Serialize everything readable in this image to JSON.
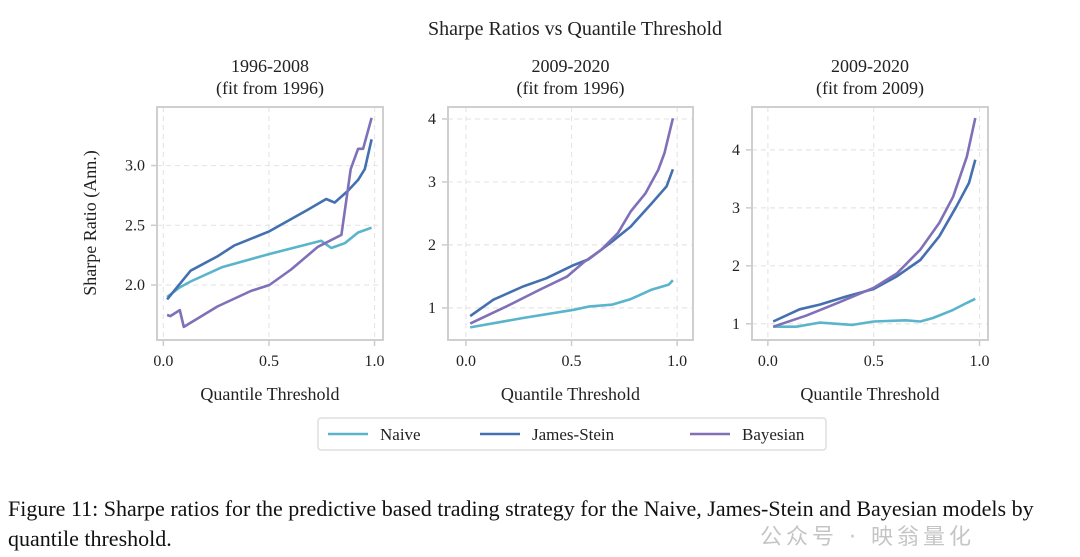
{
  "chart_data": {
    "type": "line",
    "title": "Sharpe Ratios vs Quantile Threshold",
    "ylabel": "Sharpe Ratio (Ann.)",
    "colors": {
      "Naive": "#5ab4cc",
      "James-Stein": "#4470b0",
      "Bayesian": "#8070b8"
    },
    "legend": {
      "placement": "bottom-center",
      "entries": [
        "Naive",
        "James-Stein",
        "Bayesian"
      ]
    },
    "grid": true,
    "panels": [
      {
        "title": [
          "1996-2008",
          "(fit from 1996)"
        ],
        "xlabel": "Quantile Threshold",
        "xlim": [
          -0.03,
          1.04
        ],
        "ylim": [
          1.54,
          3.49
        ],
        "xticks": [
          0.0,
          0.5,
          1.0
        ],
        "xtick_labels": [
          "0.0",
          "0.5",
          "1.0"
        ],
        "yticks": [
          2.0,
          2.5,
          3.0
        ],
        "ytick_labels": [
          "2.0",
          "2.5",
          "3.0"
        ],
        "series": [
          {
            "name": "Naive",
            "x": [
              0.018,
              0.078,
              0.129,
              0.279,
              0.502,
              0.748,
              0.771,
              0.795,
              0.859,
              0.922,
              0.986
            ],
            "y": [
              1.9,
              1.98,
              2.03,
              2.15,
              2.26,
              2.37,
              2.34,
              2.31,
              2.35,
              2.44,
              2.48
            ]
          },
          {
            "name": "James-Stein",
            "x": [
              0.018,
              0.129,
              0.256,
              0.335,
              0.502,
              0.684,
              0.771,
              0.811,
              0.875,
              0.922,
              0.954,
              0.986
            ],
            "y": [
              1.88,
              2.12,
              2.24,
              2.33,
              2.45,
              2.63,
              2.72,
              2.69,
              2.79,
              2.88,
              2.97,
              3.22
            ]
          },
          {
            "name": "Bayesian",
            "x": [
              0.018,
              0.033,
              0.078,
              0.097,
              0.256,
              0.414,
              0.502,
              0.605,
              0.732,
              0.843,
              0.887,
              0.922,
              0.946,
              0.986
            ],
            "y": [
              1.75,
              1.74,
              1.79,
              1.65,
              1.82,
              1.95,
              2.0,
              2.13,
              2.32,
              2.42,
              2.97,
              3.14,
              3.14,
              3.4
            ]
          }
        ]
      },
      {
        "title": [
          "2009-2020",
          "(fit from 1996)"
        ],
        "xlabel": "Quantile Threshold",
        "xlim": [
          -0.085,
          1.075
        ],
        "ylim": [
          0.49,
          4.19
        ],
        "xticks": [
          0.0,
          0.5,
          1.0
        ],
        "xtick_labels": [
          "0.0",
          "0.5",
          "1.0"
        ],
        "yticks": [
          1,
          2,
          3,
          4
        ],
        "ytick_labels": [
          "1",
          "2",
          "3",
          "4"
        ],
        "series": [
          {
            "name": "Naive",
            "x": [
              0.02,
              0.27,
              0.51,
              0.58,
              0.69,
              0.78,
              0.88,
              0.96,
              0.98
            ],
            "y": [
              0.69,
              0.84,
              0.97,
              1.02,
              1.05,
              1.14,
              1.29,
              1.37,
              1.44
            ]
          },
          {
            "name": "James-Stein",
            "x": [
              0.02,
              0.13,
              0.27,
              0.38,
              0.51,
              0.58,
              0.69,
              0.78,
              0.88,
              0.95,
              0.98
            ],
            "y": [
              0.87,
              1.13,
              1.34,
              1.47,
              1.68,
              1.77,
              2.05,
              2.29,
              2.66,
              2.93,
              3.2
            ]
          },
          {
            "name": "Bayesian",
            "x": [
              0.02,
              0.19,
              0.35,
              0.48,
              0.56,
              0.64,
              0.72,
              0.78,
              0.85,
              0.91,
              0.94,
              0.98
            ],
            "y": [
              0.75,
              1.02,
              1.29,
              1.5,
              1.73,
              1.92,
              2.19,
              2.53,
              2.82,
              3.19,
              3.46,
              4.01
            ]
          }
        ]
      },
      {
        "title": [
          "2009-2020",
          "(fit from 2009)"
        ],
        "xlabel": "Quantile Threshold",
        "xlim": [
          -0.075,
          1.04
        ],
        "ylim": [
          0.72,
          4.74
        ],
        "xticks": [
          0.0,
          0.5,
          1.0
        ],
        "xtick_labels": [
          "0.0",
          "0.5",
          "1.0"
        ],
        "yticks": [
          1,
          2,
          3,
          4
        ],
        "ytick_labels": [
          "1",
          "2",
          "3",
          "4"
        ],
        "series": [
          {
            "name": "Naive",
            "x": [
              0.025,
              0.135,
              0.245,
              0.4,
              0.5,
              0.65,
              0.72,
              0.78,
              0.875,
              0.94,
              0.98
            ],
            "y": [
              0.95,
              0.95,
              1.02,
              0.98,
              1.04,
              1.06,
              1.04,
              1.1,
              1.24,
              1.36,
              1.43
            ]
          },
          {
            "name": "James-Stein",
            "x": [
              0.025,
              0.15,
              0.245,
              0.37,
              0.5,
              0.61,
              0.72,
              0.81,
              0.89,
              0.95,
              0.98
            ],
            "y": [
              1.04,
              1.25,
              1.33,
              1.47,
              1.6,
              1.82,
              2.1,
              2.51,
              3.02,
              3.43,
              3.83
            ]
          },
          {
            "name": "Bayesian",
            "x": [
              0.025,
              0.18,
              0.33,
              0.5,
              0.61,
              0.72,
              0.81,
              0.875,
              0.94,
              0.98
            ],
            "y": [
              0.95,
              1.14,
              1.36,
              1.62,
              1.87,
              2.28,
              2.74,
              3.19,
              3.88,
              4.55
            ]
          }
        ]
      }
    ]
  },
  "caption": "Figure 11: Sharpe ratios for the predictive based trading strategy for the Naive, James-Stein and Bayesian models by quantile threshold.",
  "watermark": "公众号 · 映翁量化"
}
